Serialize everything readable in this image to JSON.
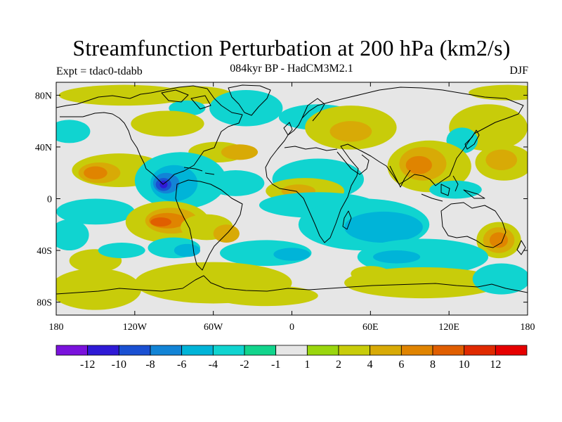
{
  "title": "Streamfunction Perturbation at 200 hPa (km2/s)",
  "subtitle": "084kyr BP - HadCM3M2.1",
  "experiment": "Expt = tdac0-tdabb",
  "season": "DJF",
  "axes": {
    "y_ticks": [
      {
        "value": 80,
        "label": "80N"
      },
      {
        "value": 40,
        "label": "40N"
      },
      {
        "value": 0,
        "label": "0"
      },
      {
        "value": -40,
        "label": "40S"
      },
      {
        "value": -80,
        "label": "80S"
      }
    ],
    "x_ticks": [
      {
        "value": -180,
        "label": "180"
      },
      {
        "value": -120,
        "label": "120W"
      },
      {
        "value": -60,
        "label": "60W"
      },
      {
        "value": 0,
        "label": "0"
      },
      {
        "value": 60,
        "label": "60E"
      },
      {
        "value": 120,
        "label": "120E"
      },
      {
        "value": 180,
        "label": "180"
      }
    ],
    "lon_range": [
      -180,
      180
    ],
    "lat_range": [
      -90,
      90
    ]
  },
  "colorbar": {
    "colors": [
      "#7a12dc",
      "#2f1ad6",
      "#1a50d2",
      "#1284d6",
      "#00b4d8",
      "#10d4d0",
      "#12d48c",
      "#e6e6e6",
      "#9ad60e",
      "#c8cc0a",
      "#d8aa06",
      "#e08400",
      "#e05e00",
      "#e02a00",
      "#e60000"
    ],
    "labels": [
      "-12",
      "-10",
      "-8",
      "-6",
      "-4",
      "-2",
      "-1",
      "1",
      "2",
      "4",
      "6",
      "8",
      "10",
      "12"
    ]
  },
  "field": {
    "blobs": [
      {
        "lon": -132,
        "lat": 22,
        "rx": 36,
        "ry": 13,
        "level": "2"
      },
      {
        "lon": -147,
        "lat": 20,
        "rx": 16,
        "ry": 8,
        "level": "4"
      },
      {
        "lon": -150,
        "lat": 20,
        "rx": 9,
        "ry": 5,
        "level": "6"
      },
      {
        "lon": -128,
        "lat": 80,
        "rx": 50,
        "ry": 8,
        "level": "2"
      },
      {
        "lon": -75,
        "lat": 80,
        "rx": 30,
        "ry": 7,
        "level": "2"
      },
      {
        "lon": -80,
        "lat": 70,
        "rx": 14,
        "ry": 6,
        "level": "-2"
      },
      {
        "lon": -35,
        "lat": 70,
        "rx": 28,
        "ry": 14,
        "level": "-2"
      },
      {
        "lon": -95,
        "lat": 58,
        "rx": 28,
        "ry": 10,
        "level": "2"
      },
      {
        "lon": -170,
        "lat": 52,
        "rx": 16,
        "ry": 9,
        "level": "-2"
      },
      {
        "lon": 20,
        "lat": 63,
        "rx": 30,
        "ry": 10,
        "level": "-2"
      },
      {
        "lon": 45,
        "lat": 55,
        "rx": 35,
        "ry": 17,
        "level": "2"
      },
      {
        "lon": 45,
        "lat": 52,
        "rx": 16,
        "ry": 8,
        "level": "4"
      },
      {
        "lon": 150,
        "lat": 55,
        "rx": 30,
        "ry": 18,
        "level": "2"
      },
      {
        "lon": 130,
        "lat": 45,
        "rx": 12,
        "ry": 10,
        "level": "-2"
      },
      {
        "lon": 165,
        "lat": 82,
        "rx": 30,
        "ry": 6,
        "level": "2"
      },
      {
        "lon": -57,
        "lat": 36,
        "rx": 22,
        "ry": 8,
        "level": "2"
      },
      {
        "lon": -40,
        "lat": 36,
        "rx": 14,
        "ry": 6,
        "level": "4"
      },
      {
        "lon": -85,
        "lat": 14,
        "rx": 35,
        "ry": 22,
        "level": "-2"
      },
      {
        "lon": -90,
        "lat": 12,
        "rx": 18,
        "ry": 14,
        "level": "-4"
      },
      {
        "lon": -96,
        "lat": 12,
        "rx": 10,
        "ry": 8,
        "level": "-6"
      },
      {
        "lon": -98,
        "lat": 11,
        "rx": 6,
        "ry": 5,
        "level": "-8"
      },
      {
        "lon": -98,
        "lat": 11,
        "rx": 3,
        "ry": 3,
        "level": "-10"
      },
      {
        "lon": -43,
        "lat": 12,
        "rx": 22,
        "ry": 10,
        "level": "-2"
      },
      {
        "lon": 20,
        "lat": 15,
        "rx": 35,
        "ry": 16,
        "level": "-2"
      },
      {
        "lon": 10,
        "lat": 6,
        "rx": 30,
        "ry": 10,
        "level": "2"
      },
      {
        "lon": 5,
        "lat": 6,
        "rx": 13,
        "ry": 5,
        "level": "4"
      },
      {
        "lon": 105,
        "lat": 25,
        "rx": 32,
        "ry": 20,
        "level": "2"
      },
      {
        "lon": 100,
        "lat": 27,
        "rx": 18,
        "ry": 13,
        "level": "4"
      },
      {
        "lon": 97,
        "lat": 26,
        "rx": 10,
        "ry": 7,
        "level": "6"
      },
      {
        "lon": 162,
        "lat": 28,
        "rx": 22,
        "ry": 14,
        "level": "2"
      },
      {
        "lon": 160,
        "lat": 30,
        "rx": 12,
        "ry": 8,
        "level": "4"
      },
      {
        "lon": 125,
        "lat": 7,
        "rx": 20,
        "ry": 7,
        "level": "-2"
      },
      {
        "lon": -150,
        "lat": -10,
        "rx": 30,
        "ry": 10,
        "level": "-2"
      },
      {
        "lon": -170,
        "lat": -28,
        "rx": 15,
        "ry": 12,
        "level": "-2"
      },
      {
        "lon": -95,
        "lat": -18,
        "rx": 32,
        "ry": 16,
        "level": "2"
      },
      {
        "lon": -92,
        "lat": -17,
        "rx": 20,
        "ry": 10,
        "level": "4"
      },
      {
        "lon": -95,
        "lat": -17,
        "rx": 14,
        "ry": 6,
        "level": "6"
      },
      {
        "lon": -100,
        "lat": -18,
        "rx": 8,
        "ry": 3.5,
        "level": "8"
      },
      {
        "lon": -65,
        "lat": -22,
        "rx": 20,
        "ry": 10,
        "level": "2"
      },
      {
        "lon": -50,
        "lat": -27,
        "rx": 10,
        "ry": 7,
        "level": "4"
      },
      {
        "lon": 20,
        "lat": -5,
        "rx": 45,
        "ry": 10,
        "level": "-2"
      },
      {
        "lon": 55,
        "lat": -20,
        "rx": 50,
        "ry": 20,
        "level": "-2"
      },
      {
        "lon": 70,
        "lat": -22,
        "rx": 30,
        "ry": 12,
        "level": "-4"
      },
      {
        "lon": 158,
        "lat": -32,
        "rx": 17,
        "ry": 14,
        "level": "2"
      },
      {
        "lon": 158,
        "lat": -32,
        "rx": 12,
        "ry": 10,
        "level": "4"
      },
      {
        "lon": 158,
        "lat": -32,
        "rx": 7,
        "ry": 6,
        "level": "6"
      },
      {
        "lon": -150,
        "lat": -48,
        "rx": 20,
        "ry": 9,
        "level": "2"
      },
      {
        "lon": -130,
        "lat": -40,
        "rx": 18,
        "ry": 6,
        "level": "-2"
      },
      {
        "lon": -90,
        "lat": -38,
        "rx": 20,
        "ry": 8,
        "level": "-2"
      },
      {
        "lon": -80,
        "lat": -40,
        "rx": 10,
        "ry": 5,
        "level": "-4"
      },
      {
        "lon": -20,
        "lat": -42,
        "rx": 35,
        "ry": 10,
        "level": "-2"
      },
      {
        "lon": 0,
        "lat": -43,
        "rx": 14,
        "ry": 5,
        "level": "-4"
      },
      {
        "lon": 100,
        "lat": -45,
        "rx": 50,
        "ry": 14,
        "level": "-2"
      },
      {
        "lon": 80,
        "lat": -45,
        "rx": 18,
        "ry": 5,
        "level": "-4"
      },
      {
        "lon": 60,
        "lat": -58,
        "rx": 15,
        "ry": 6,
        "level": "2"
      },
      {
        "lon": -150,
        "lat": -70,
        "rx": 35,
        "ry": 16,
        "level": "2"
      },
      {
        "lon": -60,
        "lat": -65,
        "rx": 60,
        "ry": 16,
        "level": "2"
      },
      {
        "lon": -20,
        "lat": -75,
        "rx": 40,
        "ry": 8,
        "level": "2"
      },
      {
        "lon": 100,
        "lat": -65,
        "rx": 60,
        "ry": 12,
        "level": "2"
      },
      {
        "lon": 160,
        "lat": -62,
        "rx": 22,
        "ry": 12,
        "level": "-2"
      }
    ]
  }
}
